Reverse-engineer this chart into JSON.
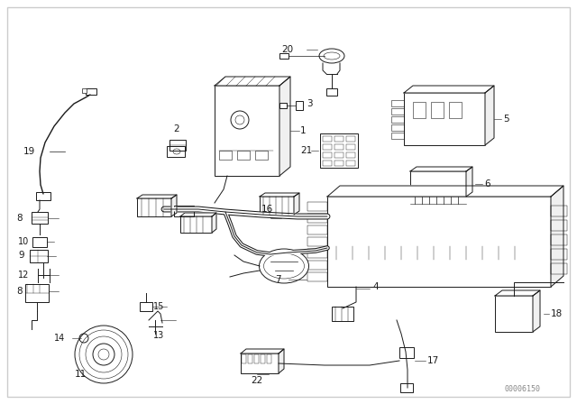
{
  "bg_color": "#ffffff",
  "line_color": "#1a1a1a",
  "fig_width": 6.4,
  "fig_height": 4.48,
  "dpi": 100,
  "watermark": "00006150",
  "border_color": "#cccccc"
}
